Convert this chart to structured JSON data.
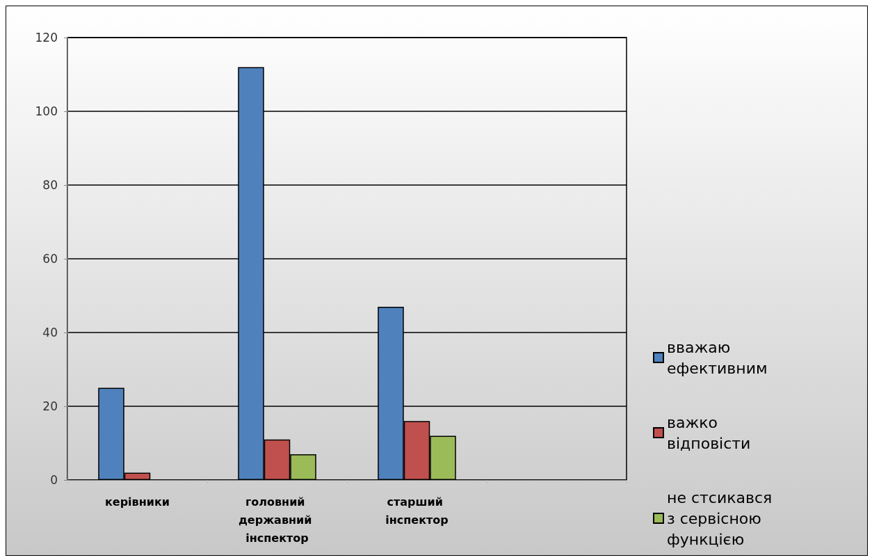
{
  "chart_data": {
    "type": "bar",
    "categories": [
      "керівники",
      "головний державний інспектор",
      "старший інспектор",
      null
    ],
    "series": [
      {
        "name": "вважаю ефективним",
        "color": "#4f81bd",
        "values": [
          25,
          112,
          47,
          null
        ]
      },
      {
        "name": "важко відповісти",
        "color": "#c0504d",
        "values": [
          2,
          11,
          16,
          null
        ]
      },
      {
        "name": "не стсикався з сервісною функцією",
        "color": "#9bbb59",
        "values": [
          null,
          7,
          12,
          null
        ]
      }
    ],
    "ylim": [
      0,
      120
    ],
    "yticks": [
      0,
      20,
      40,
      60,
      80,
      100,
      120
    ],
    "grid": "y",
    "legend": "right"
  }
}
